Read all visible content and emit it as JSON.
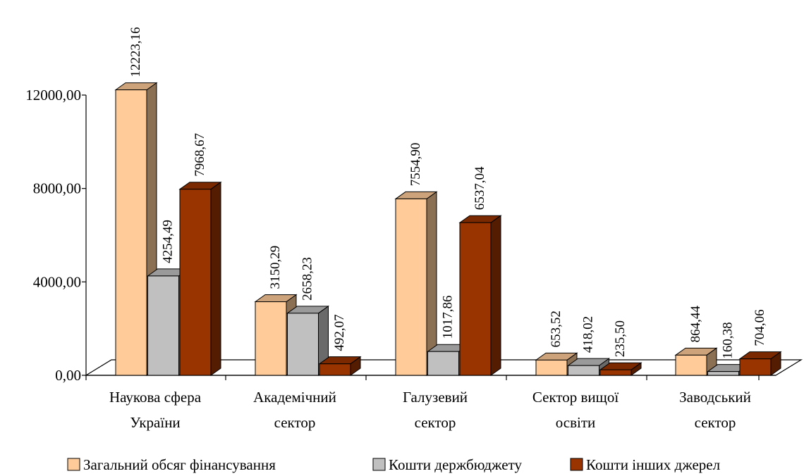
{
  "chart_data": {
    "type": "bar",
    "style": "3d-clustered-column",
    "categories": [
      [
        "Наукова сфера",
        "України"
      ],
      [
        "Академічний",
        "сектор"
      ],
      [
        "Галузевий",
        "сектор"
      ],
      [
        "Сектор вищої",
        "освіти"
      ],
      [
        "Заводський",
        "сектор"
      ]
    ],
    "series": [
      {
        "name": "Загальний обсяг фінансування",
        "values": [
          12223.16,
          3150.29,
          7554.9,
          653.52,
          864.44
        ],
        "labels": [
          "12223,16",
          "3150,29",
          "7554,90",
          "653,52",
          "864,44"
        ],
        "color": "#FFCC99"
      },
      {
        "name": "Кошти держбюджету",
        "values": [
          4254.49,
          2658.23,
          1017.86,
          418.02,
          160.38
        ],
        "labels": [
          "4254,49",
          "2658,23",
          "1017,86",
          "418,02",
          "160,38"
        ],
        "color": "#C0C0C0"
      },
      {
        "name": "Кошти інших джерел",
        "values": [
          7968.67,
          492.07,
          6537.04,
          235.5,
          704.06
        ],
        "labels": [
          "7968,67",
          "492,07",
          "6537,04",
          "235,50",
          "704,06"
        ],
        "color": "#993300"
      }
    ],
    "yticks": [
      0,
      4000,
      8000,
      12000
    ],
    "ytick_labels": [
      "0,00",
      "4000,00",
      "8000,00",
      "12000,00"
    ],
    "ylim": [
      0,
      12000
    ],
    "title": "",
    "xlabel": "",
    "ylabel": "",
    "grid": false,
    "legend_position": "bottom"
  }
}
